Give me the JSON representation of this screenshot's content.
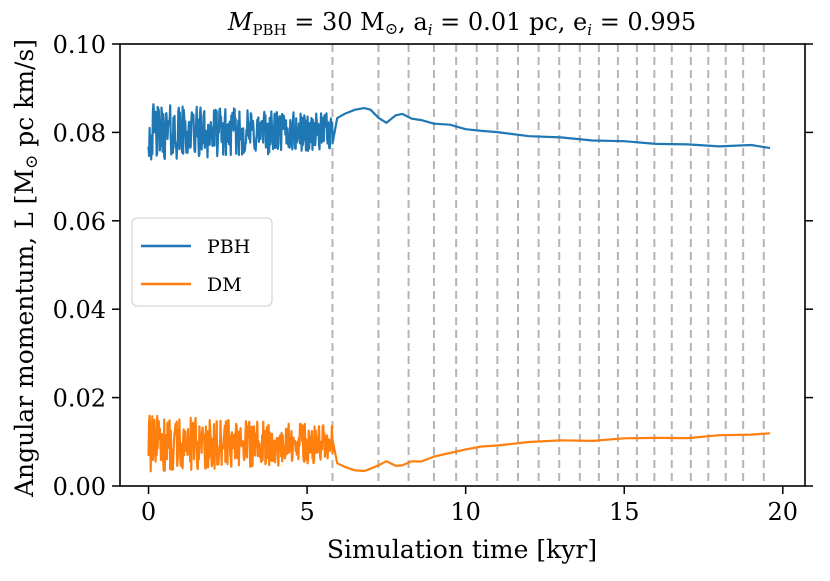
{
  "chart_data": {
    "type": "line",
    "title": "M_PBH = 30 M_⊙, a_i = 0.01 pc, e_i = 0.995",
    "title_parts": {
      "mass_symbol": "M",
      "mass_subscript": "PBH",
      "mass_value": " = 30 M",
      "sun_symbol": "⊙",
      "a_part": ", a",
      "a_sub": "i",
      "a_value": " = 0.01 pc, e",
      "e_sub": "i",
      "e_value": " = 0.995"
    },
    "xlabel": "Simulation time [kyr]",
    "ylabel_parts": {
      "text": "Angular momentum, L [M",
      "sun": "⊙",
      "units": " pc km/s]"
    },
    "xlim": [
      -0.9,
      20.7
    ],
    "ylim": [
      0.0,
      0.1
    ],
    "xticks": [
      0,
      5,
      10,
      15,
      20
    ],
    "xtick_labels": [
      "0",
      "5",
      "10",
      "15",
      "20"
    ],
    "yticks": [
      0.0,
      0.02,
      0.04,
      0.06,
      0.08,
      0.1
    ],
    "ytick_labels": [
      "0.00",
      "0.02",
      "0.04",
      "0.06",
      "0.08",
      "0.10"
    ],
    "legend_position": "center-left",
    "vlines": [
      5.8,
      7.25,
      8.2,
      9.0,
      9.7,
      10.35,
      11.0,
      11.65,
      12.3,
      12.95,
      13.6,
      14.2,
      14.8,
      15.4,
      15.95,
      16.5,
      17.1,
      17.65,
      18.2,
      18.75,
      19.4
    ],
    "series": [
      {
        "name": "PBH",
        "color": "#1f77b4",
        "noisy_segment": {
          "x_start": 0.0,
          "x_end": 5.8,
          "mean": 0.08,
          "amplitude": 0.0065
        },
        "x": [
          5.8,
          5.95,
          6.2,
          6.5,
          6.8,
          7.0,
          7.25,
          7.5,
          7.8,
          8.0,
          8.3,
          8.6,
          9.0,
          9.5,
          10.0,
          10.5,
          11.0,
          12.0,
          13.0,
          14.0,
          15.0,
          16.0,
          17.0,
          18.0,
          19.0,
          19.6
        ],
        "values": [
          0.0775,
          0.0835,
          0.0845,
          0.0852,
          0.0855,
          0.0853,
          0.0835,
          0.0825,
          0.0842,
          0.084,
          0.0832,
          0.0828,
          0.082,
          0.0815,
          0.0808,
          0.0803,
          0.0798,
          0.0793,
          0.0788,
          0.0784,
          0.078,
          0.0776,
          0.0773,
          0.077,
          0.0768,
          0.0765
        ]
      },
      {
        "name": "DM",
        "color": "#ff7f0e",
        "noisy_segment": {
          "x_start": 0.0,
          "x_end": 5.8,
          "mean": 0.0095,
          "amplitude": 0.0065
        },
        "x": [
          5.8,
          5.95,
          6.2,
          6.5,
          6.8,
          7.0,
          7.25,
          7.5,
          7.8,
          8.0,
          8.3,
          8.6,
          9.0,
          9.5,
          10.0,
          10.5,
          11.0,
          12.0,
          13.0,
          14.0,
          15.0,
          16.0,
          17.0,
          18.0,
          19.0,
          19.6
        ],
        "values": [
          0.0105,
          0.0055,
          0.0043,
          0.0038,
          0.0036,
          0.0038,
          0.005,
          0.0056,
          0.0045,
          0.0048,
          0.0055,
          0.0058,
          0.0066,
          0.0074,
          0.0081,
          0.0086,
          0.009,
          0.0096,
          0.01,
          0.0103,
          0.0106,
          0.0109,
          0.0111,
          0.0113,
          0.0116,
          0.0118
        ]
      }
    ]
  }
}
